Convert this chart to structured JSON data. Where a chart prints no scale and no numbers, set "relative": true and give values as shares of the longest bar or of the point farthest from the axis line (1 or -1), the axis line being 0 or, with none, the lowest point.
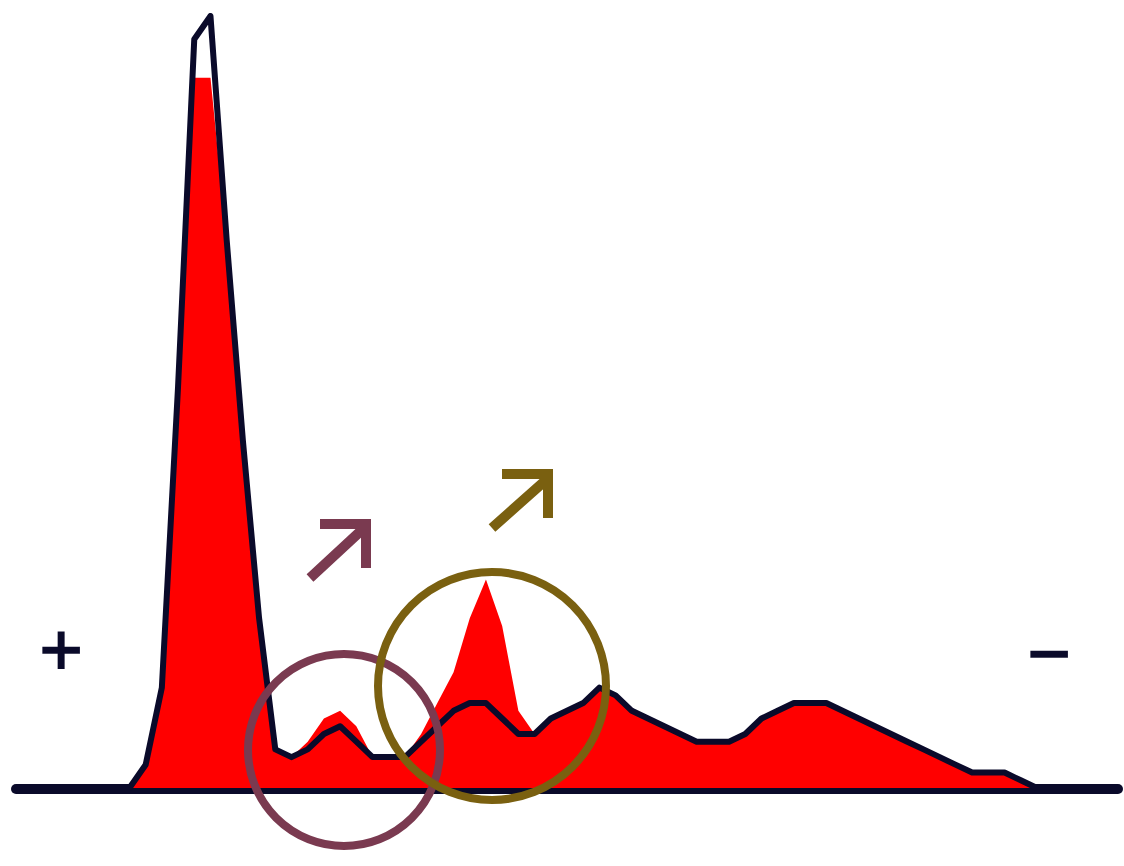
{
  "chart_data": {
    "type": "area",
    "relative": true,
    "categories": [
      null,
      null,
      null,
      null,
      null,
      null,
      null,
      null,
      null,
      null,
      null,
      null,
      null,
      null,
      null,
      null,
      null,
      null,
      null,
      null,
      null,
      null,
      null,
      null,
      null,
      null,
      null,
      null,
      null,
      null,
      null,
      null,
      null,
      null,
      null,
      null,
      null,
      null,
      null,
      null,
      null,
      null,
      null,
      null,
      null,
      null,
      null,
      null,
      null,
      null,
      null,
      null,
      null,
      null,
      null,
      null,
      null,
      null,
      null,
      null,
      null,
      null,
      null,
      null,
      null,
      null,
      null,
      null,
      null
    ],
    "series": [
      {
        "color": "#ff0000",
        "values": [
          0,
          0,
          0,
          0,
          0,
          0,
          0,
          0,
          0.03,
          0.13,
          0.52,
          0.92,
          0.92,
          0.71,
          0.45,
          0.22,
          0.05,
          0.04,
          0.06,
          0.09,
          0.1,
          0.08,
          0.04,
          0.04,
          0.04,
          0.07,
          0.11,
          0.15,
          0.22,
          0.27,
          0.21,
          0.1,
          0.07,
          0.09,
          0.1,
          0.11,
          0.13,
          0.12,
          0.1,
          0.09,
          0.08,
          0.07,
          0.06,
          0.06,
          0.06,
          0.07,
          0.09,
          0.1,
          0.11,
          0.11,
          0.11,
          0.1,
          0.09,
          0.08,
          0.07,
          0.06,
          0.05,
          0.04,
          0.03,
          0.02,
          0.02,
          0.02,
          0.01,
          0,
          0,
          0,
          0,
          0,
          0
        ]
      },
      {
        "type": "line",
        "color": "#0a0a2a",
        "values": [
          0,
          0,
          0,
          0,
          0,
          0,
          0,
          0,
          0.03,
          0.13,
          0.52,
          0.97,
          1,
          0.71,
          0.45,
          0.22,
          0.05,
          0.04,
          0.05,
          0.07,
          0.08,
          0.06,
          0.04,
          0.04,
          0.04,
          0.06,
          0.08,
          0.1,
          0.11,
          0.11,
          0.09,
          0.07,
          0.07,
          0.09,
          0.1,
          0.11,
          0.13,
          0.12,
          0.1,
          0.09,
          0.08,
          0.07,
          0.06,
          0.06,
          0.06,
          0.07,
          0.09,
          0.1,
          0.11,
          0.11,
          0.11,
          0.1,
          0.09,
          0.08,
          0.07,
          0.06,
          0.05,
          0.04,
          0.03,
          0.02,
          0.02,
          0.02,
          0.01,
          0,
          0,
          0,
          0,
          0,
          0
        ]
      }
    ],
    "annotations": [
      "+",
      "−"
    ],
    "marker": "none",
    "line_style": "solid"
  }
}
